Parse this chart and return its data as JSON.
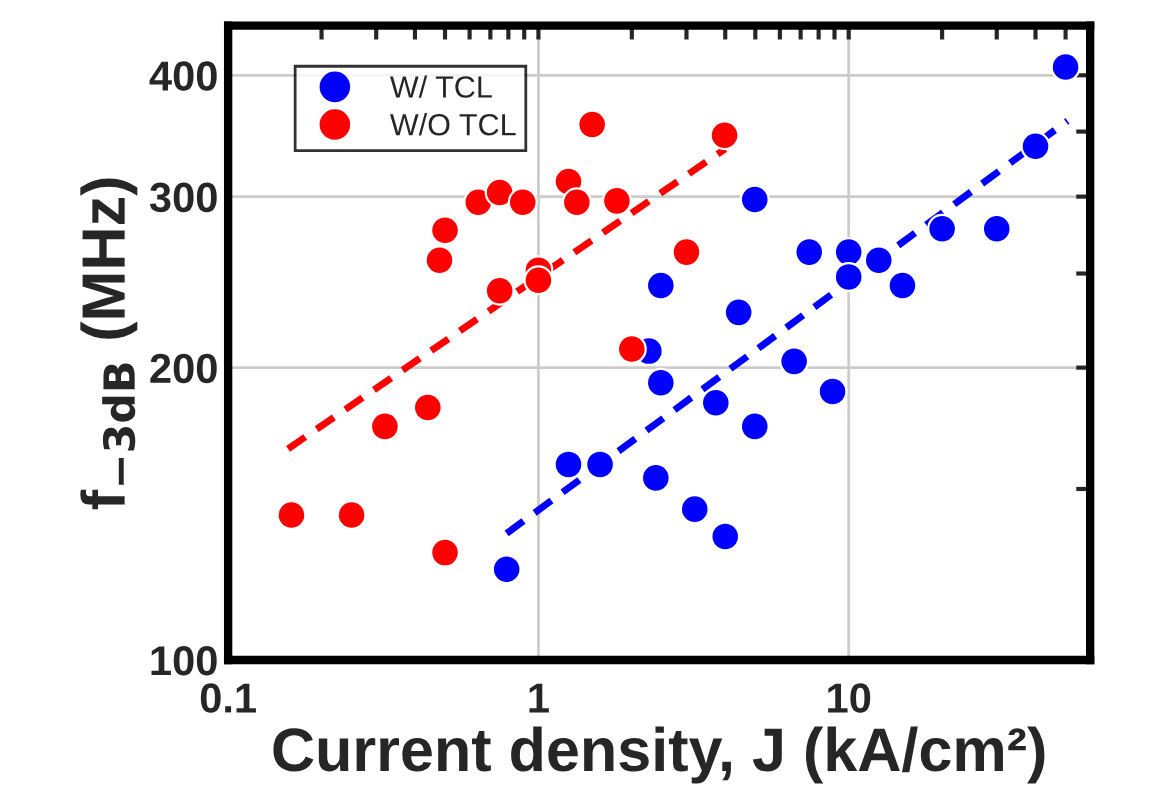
{
  "chart_data": {
    "type": "scatter",
    "xlabel": "Current density, J (kA/cm²)",
    "ylabel": "f$_{−3dB}$ (MHz)",
    "log": "xy",
    "xlim": [
      0.1,
      60
    ],
    "ylim": [
      100,
      450
    ],
    "xticks": [
      {
        "value": 0.1,
        "label": "0.1"
      },
      {
        "value": 0.2,
        "label": null
      },
      {
        "value": 0.3,
        "label": null
      },
      {
        "value": 0.4,
        "label": null
      },
      {
        "value": 0.5,
        "label": null
      },
      {
        "value": 0.6,
        "label": null
      },
      {
        "value": 0.7,
        "label": null
      },
      {
        "value": 0.8,
        "label": null
      },
      {
        "value": 0.9,
        "label": null
      },
      {
        "value": 1,
        "label": "1"
      },
      {
        "value": 2,
        "label": null
      },
      {
        "value": 3,
        "label": null
      },
      {
        "value": 4,
        "label": null
      },
      {
        "value": 5,
        "label": null
      },
      {
        "value": 6,
        "label": null
      },
      {
        "value": 7,
        "label": null
      },
      {
        "value": 8,
        "label": null
      },
      {
        "value": 9,
        "label": null
      },
      {
        "value": 10,
        "label": "10"
      },
      {
        "value": 20,
        "label": null
      },
      {
        "value": 30,
        "label": null
      },
      {
        "value": 40,
        "label": null
      },
      {
        "value": 50,
        "label": null
      }
    ],
    "yticks": [
      100,
      {
        "value": 150,
        "label": null
      },
      200,
      {
        "value": 250,
        "label": null
      },
      300,
      {
        "value": 350,
        "label": null
      },
      400
    ],
    "grid": true,
    "legend": "top left",
    "marker": "circle",
    "series": [
      {
        "name": "W/ TCL",
        "color": "#0000ff",
        "x": [
          0.79,
          1.25,
          1.58,
          2.39,
          3.19,
          4.0,
          2.27,
          2.48,
          3.73,
          4.98,
          2.48,
          4.42,
          4.98,
          6.67,
          8.87,
          7.46,
          10.0,
          10.0,
          12.5,
          14.9,
          20.0,
          30.0,
          40.0,
          50.0
        ],
        "values": [
          124,
          159,
          159,
          154,
          143,
          134,
          208,
          193,
          184,
          174,
          243,
          228,
          298,
          203,
          189,
          263,
          263,
          248,
          258,
          243,
          278,
          278,
          338,
          408
        ]
      },
      {
        "name": "W/O TCL",
        "color": "#ff0000",
        "x": [
          0.16,
          0.25,
          0.5,
          0.32,
          0.44,
          0.48,
          0.5,
          0.64,
          0.75,
          0.89,
          0.75,
          1.0,
          1.0,
          1.25,
          1.33,
          1.49,
          1.79,
          2.0,
          3.0,
          3.98
        ],
        "values": [
          141,
          141,
          129,
          174,
          182,
          258,
          277,
          296,
          303,
          296,
          240,
          252,
          246,
          311,
          296,
          356,
          297,
          209,
          263,
          347
        ]
      },
      {
        "type": "line",
        "line_style": "dashed",
        "marker": "none",
        "color": "#ff0000",
        "x": [
          0.156,
          4.0
        ],
        "values": [
          165,
          336
        ]
      },
      {
        "type": "line",
        "line_style": "dashed",
        "marker": "none",
        "color": "#0000ff",
        "x": [
          0.79,
          50.7
        ],
        "values": [
          135,
          359
        ]
      }
    ]
  }
}
